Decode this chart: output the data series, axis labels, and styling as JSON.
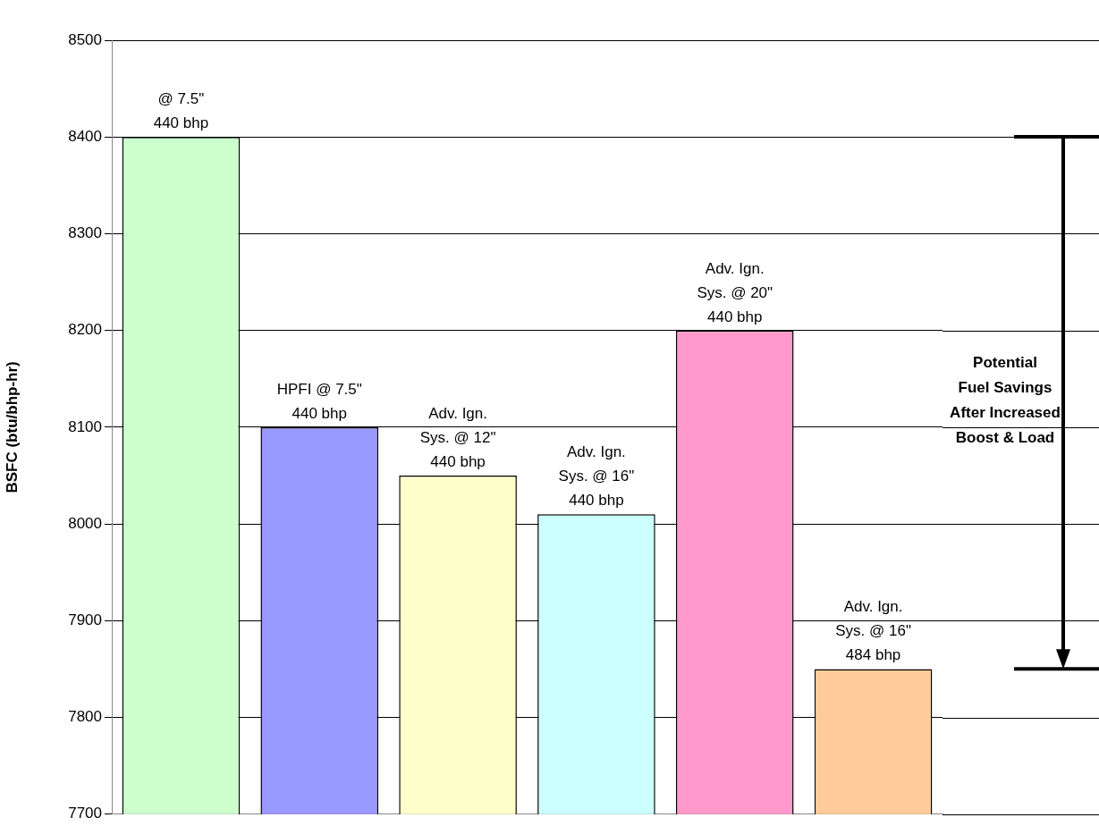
{
  "chart_data": {
    "type": "bar",
    "ylabel": "BSFC (btu/bhp-hr)",
    "categories": [
      null,
      null,
      null,
      null,
      null,
      null
    ],
    "values": [
      8400,
      8100,
      8050,
      8010,
      8200,
      7850
    ],
    "colors": [
      "#ccffcc",
      "#9999ff",
      "#ffffcc",
      "#ccffff",
      "#ff99cc",
      "#ffcc99"
    ],
    "ylim": [
      7700,
      8500
    ],
    "yticks": [
      7700,
      7800,
      7900,
      8000,
      8100,
      8200,
      8300,
      8400,
      8500
    ],
    "grid": "y",
    "legend": false,
    "annotations": [
      "@ 7.5\"\n440 bhp",
      "HPFI @ 7.5\"\n440 bhp",
      "Adv. Ign.\nSys. @ 12\"\n440 bhp",
      "Adv. Ign.\nSys. @ 16\"\n440 bhp",
      "Adv. Ign.\nSys. @ 20\"\n440 bhp",
      "Adv. Ign.\nSys. @ 16\"\n484 bhp",
      "Potential\nFuel Savings\nAfter Increased\nBoost & Load"
    ]
  }
}
